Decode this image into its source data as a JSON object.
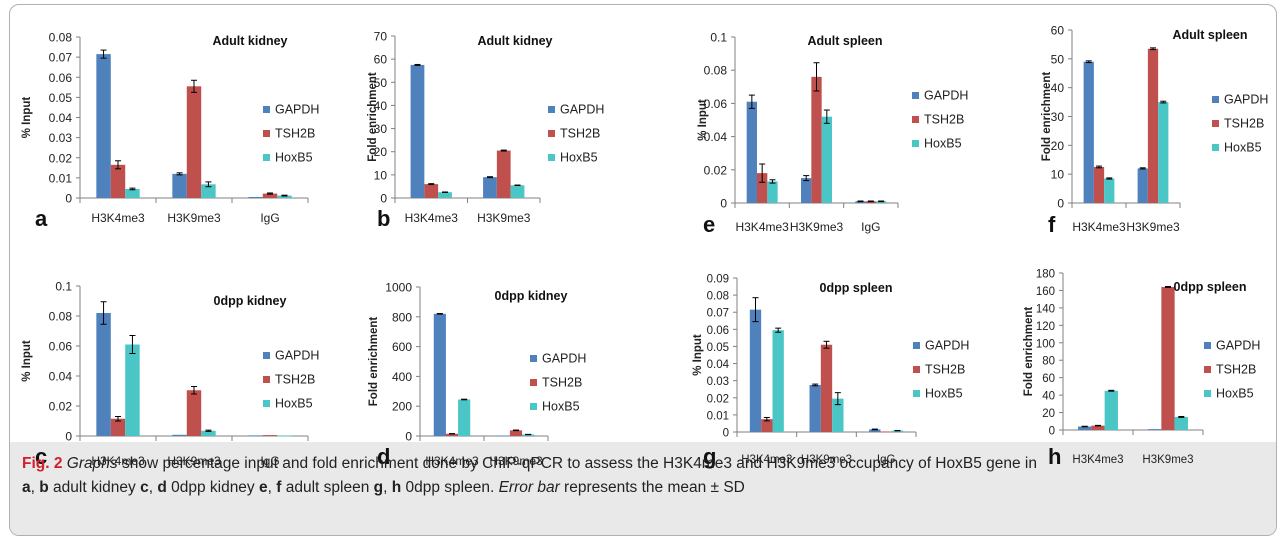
{
  "colors": {
    "GAPDH": "#4f81bd",
    "TSH2B": "#c0504d",
    "HoxB5": "#4bc6c6",
    "error": "#000000"
  },
  "chart_data": [
    {
      "id": "a",
      "type": "bar",
      "letter": "a",
      "title": "Adult kidney",
      "ylabel": "% Input",
      "xlabel": "",
      "categories": [
        "H3K4me3",
        "H3K9me3",
        "IgG"
      ],
      "ylim": [
        0,
        0.08
      ],
      "yticks": [
        "0",
        "0.01",
        "0.02",
        "0.03",
        "0.04",
        "0.05",
        "0.06",
        "0.07",
        "0.08"
      ],
      "series": [
        {
          "name": "GAPDH",
          "values": [
            0.0715,
            0.012,
            0.0005
          ],
          "errors": [
            0.002,
            0.0005,
            0
          ]
        },
        {
          "name": "TSH2B",
          "values": [
            0.0165,
            0.0555,
            0.0022
          ],
          "errors": [
            0.002,
            0.003,
            0.0003
          ]
        },
        {
          "name": "HoxB5",
          "values": [
            0.0045,
            0.0068,
            0.0012
          ],
          "errors": [
            0.0004,
            0.0012,
            0.0002
          ]
        }
      ]
    },
    {
      "id": "b",
      "type": "bar",
      "letter": "b",
      "title": "Adult kidney",
      "ylabel": "Fold enrichment",
      "xlabel": "",
      "categories": [
        "H3K4me3",
        "H3K9me3"
      ],
      "ylim": [
        0,
        70
      ],
      "yticks": [
        "0",
        "10",
        "20",
        "30",
        "40",
        "50",
        "60",
        "70"
      ],
      "series": [
        {
          "name": "GAPDH",
          "values": [
            57.5,
            9
          ],
          "errors": [
            0.2,
            0.2
          ]
        },
        {
          "name": "TSH2B",
          "values": [
            6,
            20.5
          ],
          "errors": [
            0.2,
            0.2
          ]
        },
        {
          "name": "HoxB5",
          "values": [
            2.5,
            5.5
          ],
          "errors": [
            0.1,
            0.1
          ]
        }
      ]
    },
    {
      "id": "e",
      "type": "bar",
      "letter": "e",
      "title": "Adult spleen",
      "ylabel": "% Input",
      "xlabel": "",
      "categories": [
        "H3K4me3",
        "H3K9me3",
        "IgG"
      ],
      "ylim": [
        0,
        0.1
      ],
      "yticks": [
        "0",
        "0.02",
        "0.04",
        "0.06",
        "0.08",
        "0.1"
      ],
      "series": [
        {
          "name": "GAPDH",
          "values": [
            0.061,
            0.015,
            0.001
          ],
          "errors": [
            0.004,
            0.0015,
            0.0002
          ]
        },
        {
          "name": "TSH2B",
          "values": [
            0.018,
            0.076,
            0.001
          ],
          "errors": [
            0.0055,
            0.0085,
            0.0002
          ]
        },
        {
          "name": "HoxB5",
          "values": [
            0.013,
            0.052,
            0.001
          ],
          "errors": [
            0.001,
            0.004,
            0.0002
          ]
        }
      ]
    },
    {
      "id": "f",
      "type": "bar",
      "letter": "f",
      "title": "Adult spleen",
      "ylabel": "Fold enrichment",
      "xlabel": "",
      "categories": [
        "H3K4me3",
        "H3K9me3"
      ],
      "ylim": [
        0,
        60
      ],
      "yticks": [
        "0",
        "10",
        "20",
        "30",
        "40",
        "50",
        "60"
      ],
      "series": [
        {
          "name": "GAPDH",
          "values": [
            49,
            12
          ],
          "errors": [
            0.3,
            0.2
          ]
        },
        {
          "name": "TSH2B",
          "values": [
            12.5,
            53.5
          ],
          "errors": [
            0.3,
            0.3
          ]
        },
        {
          "name": "HoxB5",
          "values": [
            8.5,
            35
          ],
          "errors": [
            0.2,
            0.3
          ]
        }
      ]
    },
    {
      "id": "c",
      "type": "bar",
      "letter": "c",
      "title": "0dpp kidney",
      "ylabel": "% Input",
      "xlabel": "",
      "categories": [
        "H3K4me3",
        "H3K9me3",
        "IgG"
      ],
      "ylim": [
        0,
        0.1
      ],
      "yticks": [
        "0",
        "0.02",
        "0.04",
        "0.06",
        "0.08",
        "0.1"
      ],
      "series": [
        {
          "name": "GAPDH",
          "values": [
            0.082,
            0.0008,
            0.0004
          ],
          "errors": [
            0.0075,
            0,
            0
          ]
        },
        {
          "name": "TSH2B",
          "values": [
            0.0115,
            0.0305,
            0.0006
          ],
          "errors": [
            0.0015,
            0.0025,
            0
          ]
        },
        {
          "name": "HoxB5",
          "values": [
            0.061,
            0.0035,
            0.0002
          ],
          "errors": [
            0.006,
            0.0004,
            0
          ]
        }
      ]
    },
    {
      "id": "d",
      "type": "bar",
      "letter": "d",
      "title": "0dpp kidney",
      "ylabel": "Fold enrichment",
      "xlabel": "",
      "categories": [
        "H3K4me3",
        "H3K9me3"
      ],
      "ylim": [
        0,
        1000
      ],
      "yticks": [
        "0",
        "200",
        "400",
        "600",
        "800",
        "1000"
      ],
      "series": [
        {
          "name": "GAPDH",
          "values": [
            820,
            3
          ],
          "errors": [
            2,
            0
          ]
        },
        {
          "name": "TSH2B",
          "values": [
            15,
            38
          ],
          "errors": [
            1,
            2
          ]
        },
        {
          "name": "HoxB5",
          "values": [
            245,
            10
          ],
          "errors": [
            2,
            1
          ]
        }
      ]
    },
    {
      "id": "g",
      "type": "bar",
      "letter": "g",
      "title": "0dpp spleen",
      "ylabel": "% Input",
      "xlabel": "",
      "categories": [
        "H3K4me3",
        "H3K9me3",
        "IgG"
      ],
      "ylim": [
        0,
        0.09
      ],
      "yticks": [
        "0",
        "0.01",
        "0.02",
        "0.03",
        "0.04",
        "0.05",
        "0.06",
        "0.07",
        "0.08",
        "0.09"
      ],
      "series": [
        {
          "name": "GAPDH",
          "values": [
            0.0715,
            0.0275,
            0.0015
          ],
          "errors": [
            0.007,
            0.0005,
            0.0002
          ]
        },
        {
          "name": "TSH2B",
          "values": [
            0.0075,
            0.051,
            0.0003
          ],
          "errors": [
            0.001,
            0.002,
            0
          ]
        },
        {
          "name": "HoxB5",
          "values": [
            0.0595,
            0.0195,
            0.0008
          ],
          "errors": [
            0.0012,
            0.0035,
            0.0001
          ]
        }
      ]
    },
    {
      "id": "h",
      "type": "bar",
      "letter": "h",
      "title": "0dpp spleen",
      "ylabel": "Fold enrichment",
      "xlabel": "",
      "categories": [
        "H3K4me3",
        "H3K9me3"
      ],
      "ylim": [
        0,
        180
      ],
      "yticks": [
        "0",
        "20",
        "40",
        "60",
        "80",
        "100",
        "120",
        "140",
        "160",
        "180"
      ],
      "series": [
        {
          "name": "GAPDH",
          "values": [
            4,
            1
          ],
          "errors": [
            0.3,
            0
          ]
        },
        {
          "name": "TSH2B",
          "values": [
            5,
            164
          ],
          "errors": [
            0.3,
            0.5
          ]
        },
        {
          "name": "HoxB5",
          "values": [
            45,
            15
          ],
          "errors": [
            0.5,
            0.5
          ]
        }
      ]
    }
  ],
  "caption": {
    "fig_label": "Fig. 2",
    "graphs_word": "Graphs",
    "text_1": " show percentage input and fold enrichment done by ChIP-qPCR to assess the H3K4me3 and H3K9me3 occupancy of HoxB5 gene in",
    "a": "a",
    "b": "b",
    "c": "c",
    "d": "d",
    "e": "e",
    "f": "f",
    "g": "g",
    "h": "h",
    "sep": ", ",
    "adult_kidney": " adult kidney ",
    "dpp_kidney": " 0dpp kidney ",
    "adult_spleen": " adult spleen ",
    "dpp_spleen": " 0dpp spleen. ",
    "error_bar": "Error bar",
    "text_end": " represents the mean ± SD"
  }
}
